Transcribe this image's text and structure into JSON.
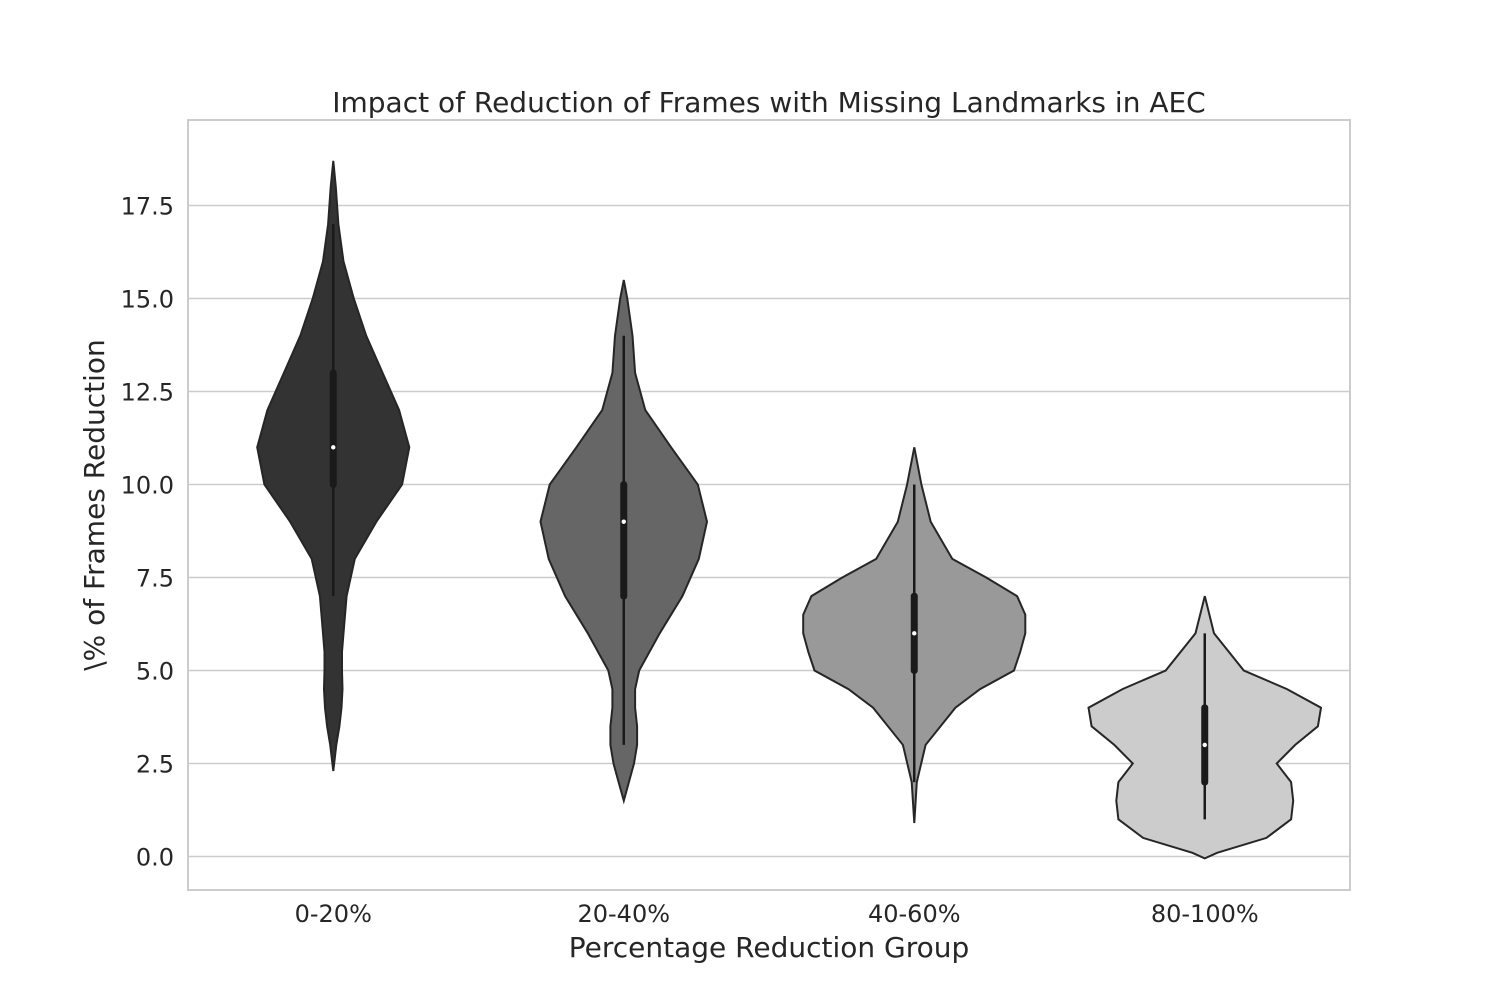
{
  "chart_data": {
    "type": "violin",
    "title": "Impact of Reduction of Frames with Missing Landmarks in AEC",
    "xlabel": "Percentage Reduction Group",
    "ylabel": "\\% of Frames Reduction",
    "ylim": [
      -0.9,
      19.8
    ],
    "yticks": [
      "0.0",
      "2.5",
      "5.0",
      "7.5",
      "10.0",
      "12.5",
      "15.0",
      "17.5"
    ],
    "grid": "horizontal",
    "categories": [
      "0-20%",
      "20-40%",
      "40-60%",
      "80-100%"
    ],
    "colors": [
      "#333333",
      "#666666",
      "#999999",
      "#cccccc"
    ],
    "violins": [
      {
        "category": "0-20%",
        "median": 11,
        "q1": 10,
        "q3": 13,
        "whisker_low": 7,
        "whisker_high": 17,
        "profile": [
          [
            2.3,
            0
          ],
          [
            3.0,
            3
          ],
          [
            3.5,
            6
          ],
          [
            4.0,
            8
          ],
          [
            4.5,
            9
          ],
          [
            5.0,
            8.5
          ],
          [
            5.5,
            8.5
          ],
          [
            6.0,
            10
          ],
          [
            7.0,
            13
          ],
          [
            8.0,
            21
          ],
          [
            9.0,
            42
          ],
          [
            10.0,
            67
          ],
          [
            11.0,
            74
          ],
          [
            12.0,
            64
          ],
          [
            13.0,
            48
          ],
          [
            14.0,
            32
          ],
          [
            15.0,
            20
          ],
          [
            16.0,
            10
          ],
          [
            17.0,
            5
          ],
          [
            18.0,
            2.5
          ],
          [
            18.7,
            0
          ]
        ]
      },
      {
        "category": "20-40%",
        "median": 9,
        "q1": 7,
        "q3": 10,
        "whisker_low": 3,
        "whisker_high": 14,
        "profile": [
          [
            1.5,
            0
          ],
          [
            2.0,
            5
          ],
          [
            2.5,
            10
          ],
          [
            3.0,
            13
          ],
          [
            3.5,
            13
          ],
          [
            4.0,
            11
          ],
          [
            4.5,
            11
          ],
          [
            5.0,
            15
          ],
          [
            6.0,
            35
          ],
          [
            7.0,
            57
          ],
          [
            8.0,
            73
          ],
          [
            9.0,
            81
          ],
          [
            10.0,
            72
          ],
          [
            11.0,
            46
          ],
          [
            12.0,
            21
          ],
          [
            13.0,
            11
          ],
          [
            14.0,
            8.5
          ],
          [
            15.0,
            3.5
          ],
          [
            15.5,
            0
          ]
        ]
      },
      {
        "category": "40-60%",
        "median": 6,
        "q1": 5,
        "q3": 7,
        "whisker_low": 2,
        "whisker_high": 10,
        "profile": [
          [
            0.9,
            0
          ],
          [
            2.0,
            2.5
          ],
          [
            3.0,
            11
          ],
          [
            4.0,
            40
          ],
          [
            4.5,
            64
          ],
          [
            5.0,
            97
          ],
          [
            5.5,
            103
          ],
          [
            6.0,
            108
          ],
          [
            6.5,
            108
          ],
          [
            7.0,
            100
          ],
          [
            7.5,
            70
          ],
          [
            8.0,
            37
          ],
          [
            9.0,
            16
          ],
          [
            10.0,
            7
          ],
          [
            11.0,
            0
          ]
        ]
      },
      {
        "category": "80-100%",
        "median": 3,
        "q1": 2,
        "q3": 4,
        "whisker_low": 1,
        "whisker_high": 6,
        "profile": [
          [
            -0.05,
            0
          ],
          [
            0.1,
            12
          ],
          [
            0.5,
            60
          ],
          [
            1.0,
            84
          ],
          [
            1.5,
            86
          ],
          [
            2.0,
            84
          ],
          [
            2.5,
            70
          ],
          [
            3.0,
            88
          ],
          [
            3.5,
            110
          ],
          [
            4.0,
            113
          ],
          [
            4.5,
            80
          ],
          [
            5.0,
            38
          ],
          [
            6.0,
            9
          ],
          [
            7.0,
            0
          ]
        ]
      }
    ]
  }
}
